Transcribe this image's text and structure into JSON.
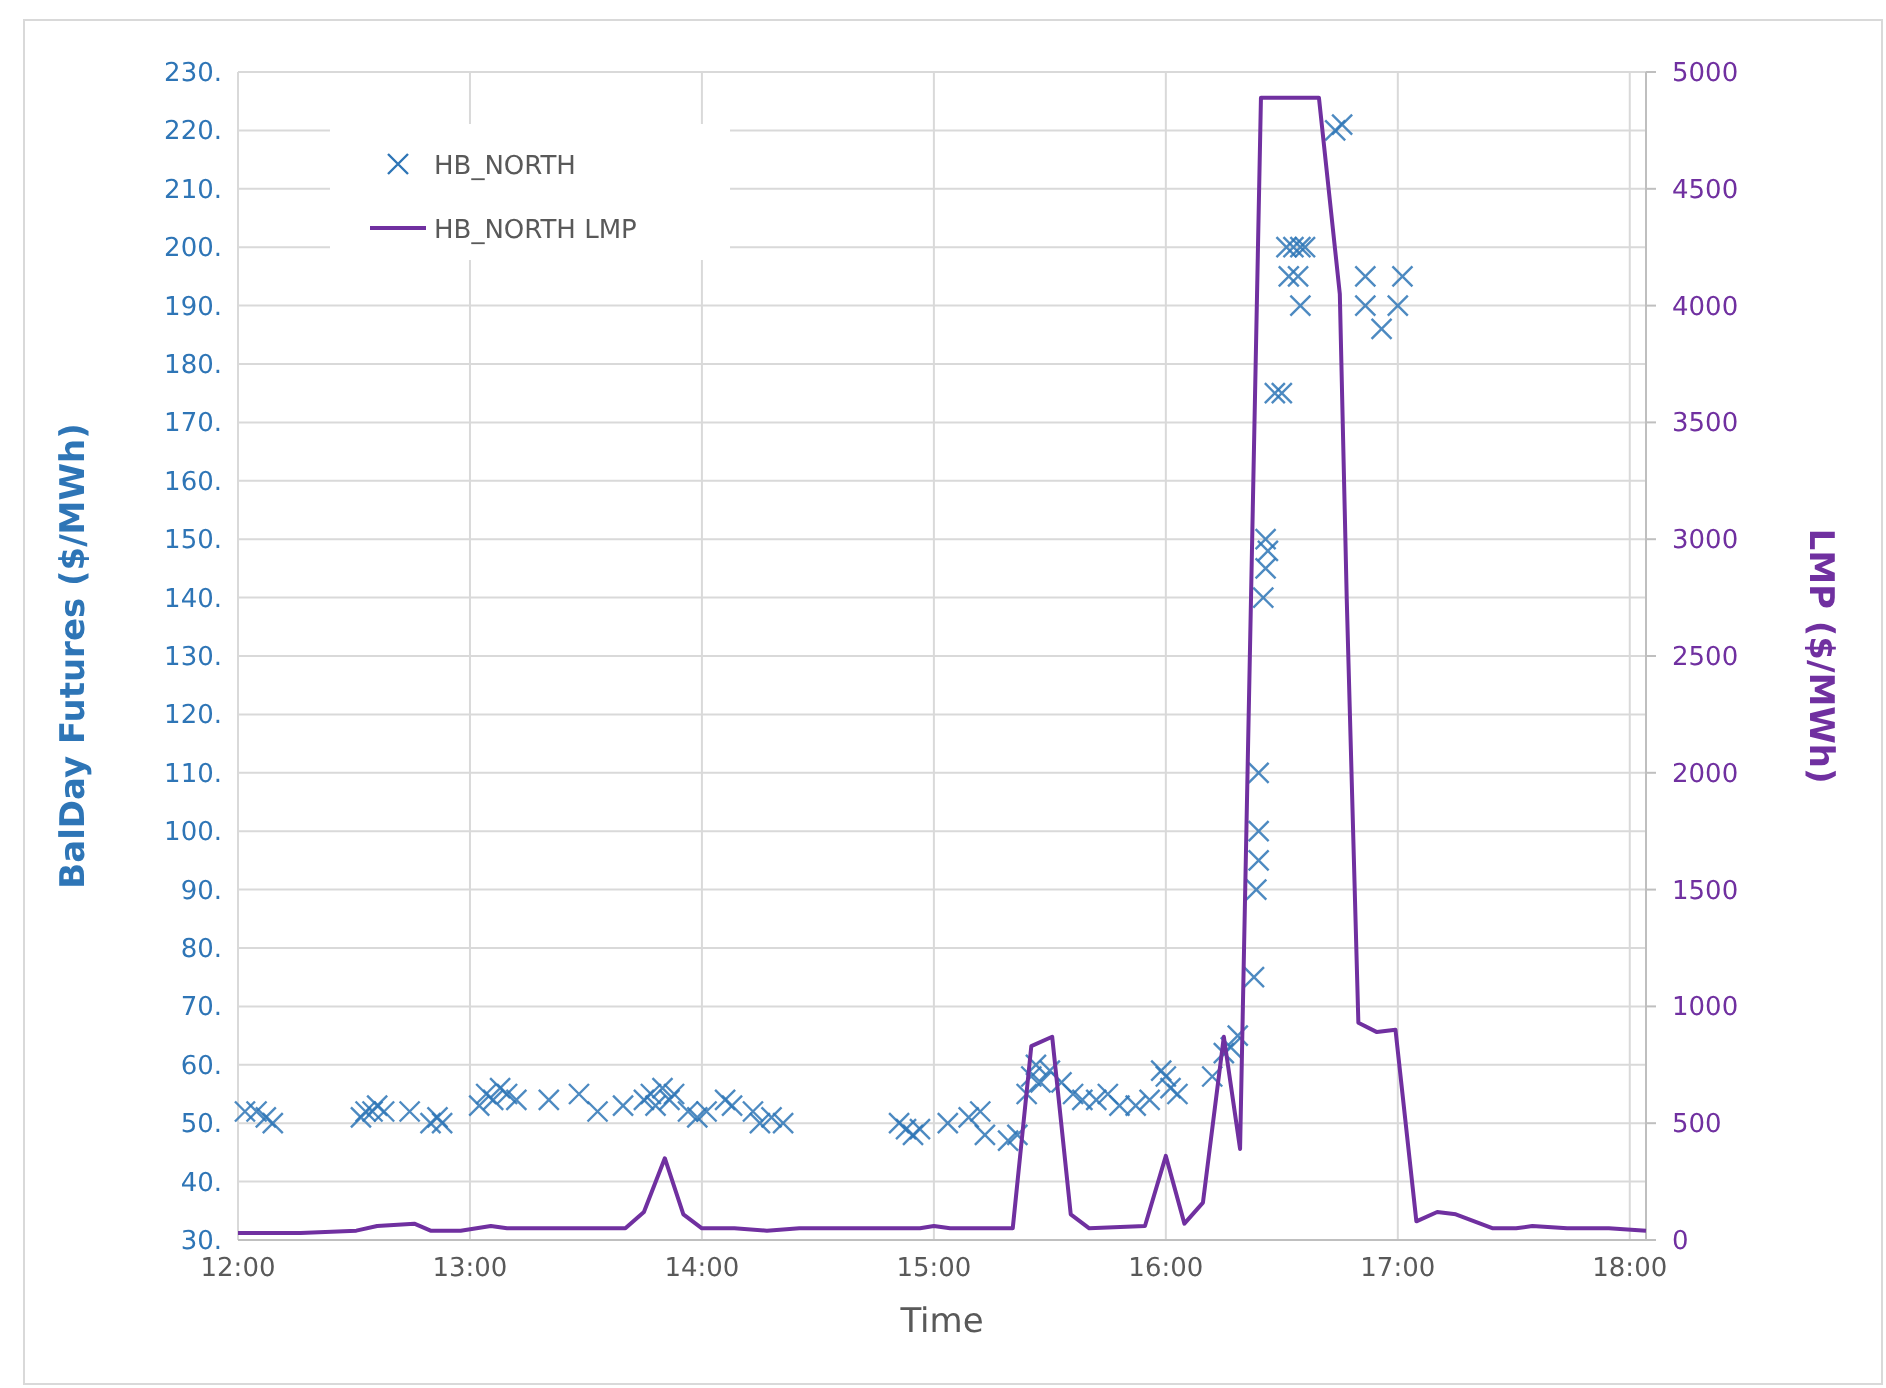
{
  "chart_data": {
    "type": "scatter",
    "xlabel": "Time",
    "ylabel": "BalDay Futures ($/MWh)",
    "y2label": "LMP ($/MWh)",
    "xlim": [
      12,
      18.07
    ],
    "xticks": [
      {
        "value": 12,
        "label": "12:00"
      },
      {
        "value": 13,
        "label": "13:00"
      },
      {
        "value": 14,
        "label": "14:00"
      },
      {
        "value": 15,
        "label": "15:00"
      },
      {
        "value": 16,
        "label": "16:00"
      },
      {
        "value": 17,
        "label": "17:00"
      },
      {
        "value": 18,
        "label": "18:00"
      }
    ],
    "ylim": [
      30,
      230
    ],
    "yticks": [
      {
        "value": 30,
        "label": "30."
      },
      {
        "value": 40,
        "label": "40."
      },
      {
        "value": 50,
        "label": "50."
      },
      {
        "value": 60,
        "label": "60."
      },
      {
        "value": 70,
        "label": "70."
      },
      {
        "value": 80,
        "label": "80."
      },
      {
        "value": 90,
        "label": "90."
      },
      {
        "value": 100,
        "label": "100."
      },
      {
        "value": 110,
        "label": "110."
      },
      {
        "value": 120,
        "label": "120."
      },
      {
        "value": 130,
        "label": "130."
      },
      {
        "value": 140,
        "label": "140."
      },
      {
        "value": 150,
        "label": "150."
      },
      {
        "value": 160,
        "label": "160."
      },
      {
        "value": 170,
        "label": "170."
      },
      {
        "value": 180,
        "label": "180."
      },
      {
        "value": 190,
        "label": "190."
      },
      {
        "value": 200,
        "label": "200."
      },
      {
        "value": 210,
        "label": "210."
      },
      {
        "value": 220,
        "label": "220."
      },
      {
        "value": 230,
        "label": "230."
      }
    ],
    "y2lim": [
      0,
      5000
    ],
    "y2ticks": [
      0,
      500,
      1000,
      1500,
      2000,
      2500,
      3000,
      3500,
      4000,
      4500,
      5000
    ],
    "grid": true,
    "legend": "top left",
    "series": [
      {
        "name": "HB_NORTH",
        "marker": "cross",
        "color": "#2e75b6",
        "x": [
          12.03,
          12.08,
          12.12,
          12.15,
          12.53,
          12.55,
          12.58,
          12.6,
          12.63,
          12.74,
          12.83,
          12.86,
          12.88,
          13.04,
          13.07,
          13.1,
          13.13,
          13.16,
          13.2,
          13.34,
          13.47,
          13.55,
          13.66,
          13.75,
          13.78,
          13.8,
          13.83,
          13.86,
          13.88,
          13.94,
          13.98,
          14.02,
          14.1,
          14.13,
          14.22,
          14.25,
          14.3,
          14.35,
          14.85,
          14.88,
          14.91,
          14.94,
          15.06,
          15.15,
          15.2,
          15.22,
          15.32,
          15.36,
          15.4,
          15.42,
          15.44,
          15.46,
          15.5,
          15.55,
          15.6,
          15.64,
          15.7,
          15.75,
          15.8,
          15.87,
          15.93,
          15.98,
          16.0,
          16.02,
          16.05,
          16.2,
          16.25,
          16.28,
          16.31,
          16.38,
          16.39,
          16.4,
          16.4,
          16.4,
          16.42,
          16.43,
          16.44,
          16.43,
          16.47,
          16.5,
          16.52,
          16.55,
          16.58,
          16.6,
          16.53,
          16.57,
          16.58,
          16.73,
          16.76,
          16.86,
          16.86,
          16.93,
          17.0,
          17.02
        ],
        "values": [
          52,
          52,
          51,
          50,
          51,
          52,
          52,
          53,
          52,
          52,
          50,
          51,
          50,
          53,
          55,
          54,
          56,
          55,
          54,
          54,
          55,
          52,
          53,
          54,
          55,
          53,
          56,
          54,
          55,
          52,
          51,
          52,
          54,
          53,
          52,
          50,
          51,
          50,
          50,
          49,
          48,
          49,
          50,
          51,
          52,
          48,
          47,
          48,
          55,
          58,
          60,
          57,
          59,
          57,
          55,
          54,
          54,
          55,
          53,
          53,
          54,
          59,
          58,
          56,
          55,
          58,
          62,
          63,
          65,
          75,
          90,
          95,
          100,
          110,
          140,
          145,
          148,
          150,
          175,
          175,
          200,
          200,
          200,
          200,
          195,
          195,
          190,
          220,
          221,
          195,
          190,
          186,
          190,
          195
        ]
      },
      {
        "name": "HB_NORTH LMP",
        "type": "line",
        "axis": "y2",
        "marker": "none",
        "line_style": "solid",
        "color": "#7030a0",
        "x": [
          12.0,
          12.27,
          12.51,
          12.6,
          12.76,
          12.83,
          12.96,
          13.09,
          13.16,
          13.24,
          13.67,
          13.75,
          13.84,
          13.92,
          14.0,
          14.14,
          14.28,
          14.42,
          14.94,
          15.0,
          15.07,
          15.34,
          15.42,
          15.51,
          15.59,
          15.67,
          15.91,
          16.0,
          16.08,
          16.16,
          16.25,
          16.32,
          16.41,
          16.66,
          16.75,
          16.78,
          16.83,
          16.91,
          16.99,
          17.08,
          17.17,
          17.25,
          17.41,
          17.51,
          17.58,
          17.73,
          17.91,
          18.07
        ],
        "values": [
          30,
          30,
          40,
          60,
          70,
          40,
          40,
          60,
          50,
          50,
          50,
          120,
          350,
          110,
          50,
          50,
          40,
          50,
          50,
          60,
          50,
          50,
          830,
          870,
          110,
          50,
          60,
          360,
          70,
          160,
          870,
          390,
          4890,
          4890,
          4050,
          2740,
          930,
          890,
          900,
          80,
          120,
          110,
          50,
          50,
          60,
          50,
          50,
          40
        ]
      }
    ]
  }
}
